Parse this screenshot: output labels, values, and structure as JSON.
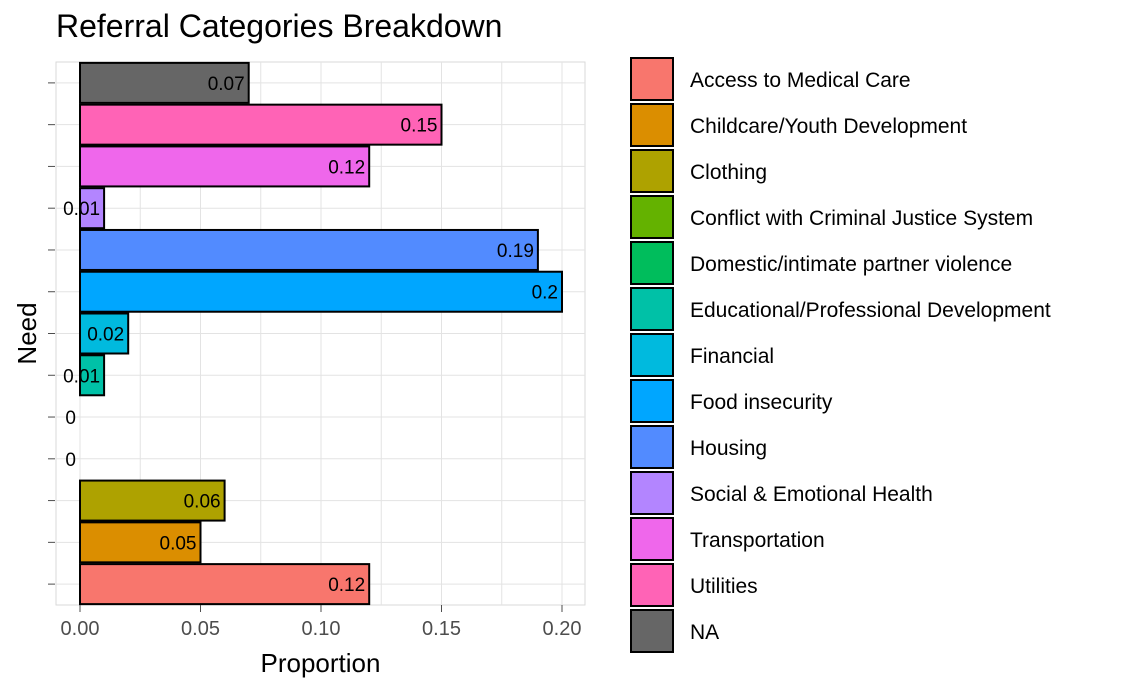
{
  "chart_data": {
    "type": "bar",
    "orientation": "horizontal",
    "title": "Referral Categories Breakdown",
    "xlabel": "Proportion",
    "ylabel": "Need",
    "xlim": [
      0,
      0.2
    ],
    "x_ticks": [
      "0.00",
      "0.05",
      "0.10",
      "0.15",
      "0.20"
    ],
    "x_tick_values": [
      0,
      0.05,
      0.1,
      0.15,
      0.2
    ],
    "grid": true,
    "legend_position": "right",
    "categories": [
      "Access to Medical Care",
      "Childcare/Youth Development",
      "Clothing",
      "Conflict with Criminal Justice System",
      "Domestic/intimate partner violence",
      "Educational/Professional Development",
      "Financial",
      "Food insecurity",
      "Housing",
      "Social & Emotional Health",
      "Transportation",
      "Utilities",
      "NA"
    ],
    "values": [
      0.12,
      0.05,
      0.06,
      0,
      0,
      0.01,
      0.02,
      0.2,
      0.19,
      0.01,
      0.12,
      0.15,
      0.07
    ],
    "value_labels": [
      "0.12",
      "0.05",
      "0.06",
      "0",
      "0",
      "0.01",
      "0.02",
      "0.2",
      "0.19",
      "0.01",
      "0.12",
      "0.15",
      "0.07"
    ],
    "colors": [
      "#F8766D",
      "#DB8E00",
      "#AEA200",
      "#64B200",
      "#00BD5C",
      "#00C1A7",
      "#00BADE",
      "#00A6FF",
      "#B385FF",
      "#EF67EB",
      "#FF63B6",
      "#FF63B6",
      "#666666"
    ]
  }
}
